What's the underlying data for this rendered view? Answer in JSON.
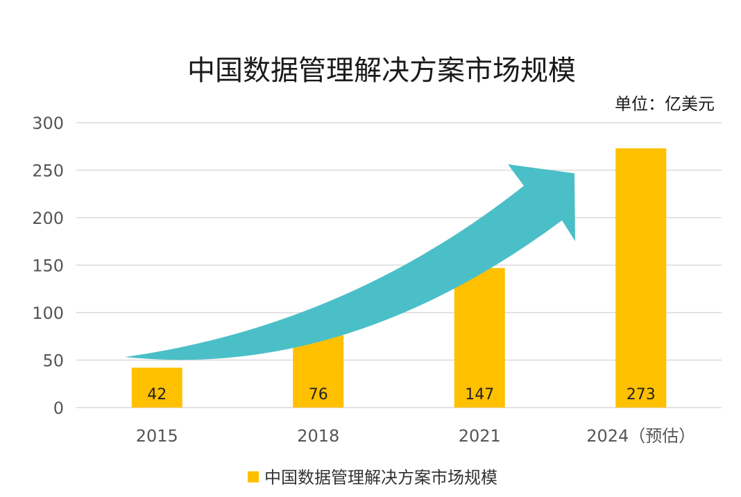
{
  "chart_data": {
    "type": "bar",
    "title": "中国数据管理解决方案市场规模",
    "unit_label": "单位：亿美元",
    "categories": [
      "2015",
      "2018",
      "2021",
      "2024（预估）"
    ],
    "series": [
      {
        "name": "中国数据管理解决方案市场规模",
        "values": [
          42,
          76,
          147,
          273
        ],
        "color": "#FFC000"
      }
    ],
    "ylim": [
      0,
      300
    ],
    "yticks": [
      0,
      50,
      100,
      150,
      200,
      250,
      300
    ],
    "grid": true,
    "legend_position": "bottom",
    "annotation": {
      "type": "trend-arrow",
      "color": "#4BBFC7"
    }
  }
}
